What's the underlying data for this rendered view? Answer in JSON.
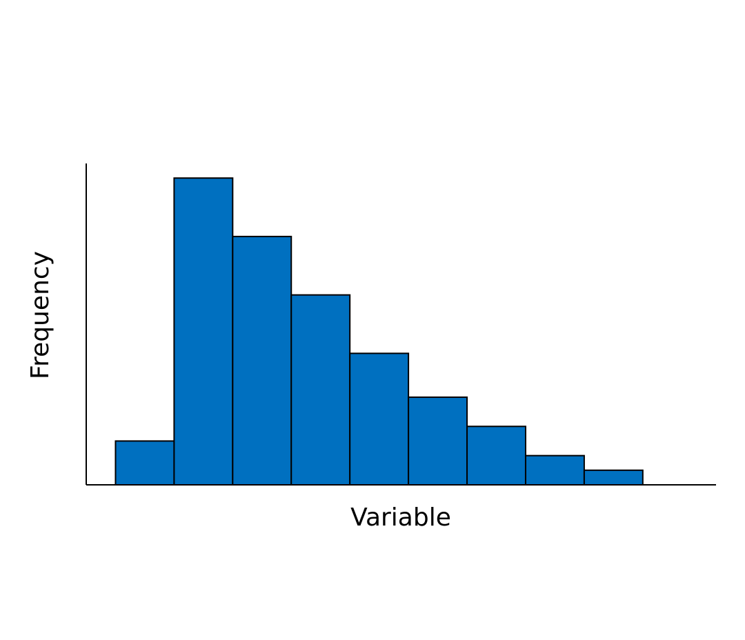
{
  "chart_data": {
    "type": "histogram",
    "xlabel": "Variable",
    "ylabel": "Frequency",
    "bins": [
      1,
      2,
      3,
      4,
      5,
      6,
      7,
      8,
      9,
      10
    ],
    "values": [
      3,
      21,
      17,
      13,
      9,
      6,
      4,
      2,
      1
    ],
    "color": "#0070c0",
    "xlim": [
      0.5,
      11.25
    ],
    "ylim": [
      0,
      22
    ]
  }
}
